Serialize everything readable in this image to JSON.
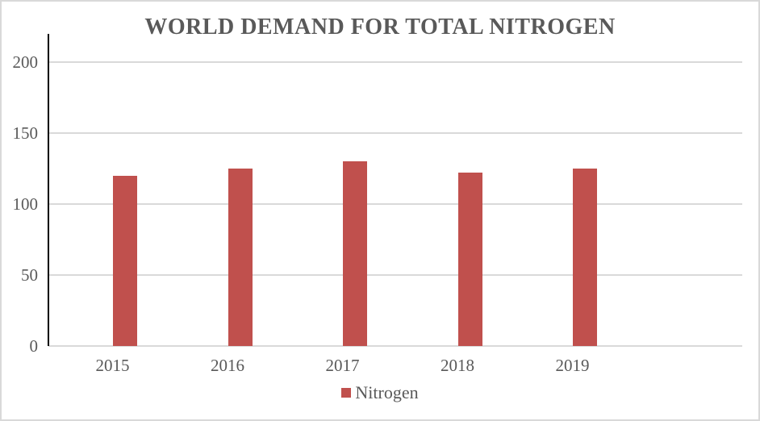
{
  "chart_data": {
    "type": "bar",
    "title": "WORLD DEMAND FOR TOTAL NITROGEN",
    "categories": [
      "2015",
      "2016",
      "2017",
      "2018",
      "2019"
    ],
    "series": [
      {
        "name": "Nitrogen",
        "values": [
          120,
          125,
          130,
          122,
          125
        ]
      }
    ],
    "xlabel": "",
    "ylabel": "",
    "ylim": [
      0,
      220
    ],
    "yticks": [
      0,
      50,
      100,
      150,
      200
    ],
    "grid": true,
    "legend_position": "bottom",
    "colors": {
      "bar": "#c0504d",
      "title": "#595959",
      "axis_label": "#595959",
      "gridline": "#d9d9d9",
      "axis_line": "#000000",
      "border": "#d9d9d9"
    }
  }
}
